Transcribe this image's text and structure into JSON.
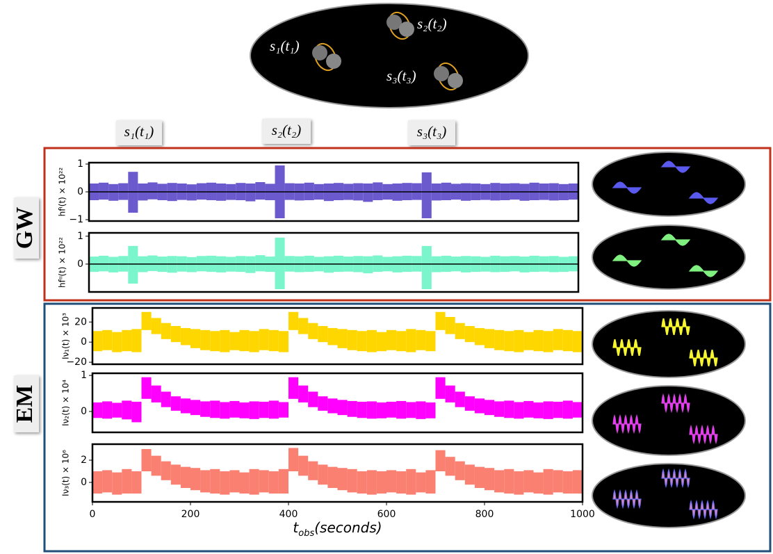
{
  "diagram": {
    "sources": [
      "s₁(t₁)",
      "s₂(t₂)",
      "s₃(t₃)"
    ],
    "markers": [
      "s₁(t₁)",
      "s₂(t₂)",
      "s₃(t₃)"
    ],
    "groups": [
      "GW",
      "EM"
    ]
  },
  "chart_data": [
    {
      "type": "range",
      "y_label": "hfᴵ(t) × 10²²",
      "color": "#6a5acd",
      "zero_line": true,
      "xlim": [
        0,
        1000
      ],
      "ylim": [
        -1.05,
        1.05
      ],
      "yticks": [
        {
          "value": -1,
          "label": "−1"
        },
        0,
        1
      ],
      "x": [
        10,
        30,
        50,
        70,
        90,
        110,
        130,
        150,
        170,
        190,
        210,
        230,
        250,
        270,
        290,
        310,
        330,
        350,
        370,
        390,
        410,
        430,
        450,
        470,
        490,
        510,
        530,
        550,
        570,
        590,
        610,
        630,
        650,
        670,
        690,
        710,
        730,
        750,
        770,
        790,
        810,
        830,
        850,
        870,
        890,
        910,
        930,
        950,
        970,
        990
      ],
      "upper": [
        0.3,
        0.33,
        0.28,
        0.31,
        0.72,
        0.3,
        0.34,
        0.29,
        0.32,
        0.3,
        0.27,
        0.31,
        0.33,
        0.3,
        0.28,
        0.32,
        0.3,
        0.35,
        0.29,
        0.95,
        0.31,
        0.3,
        0.33,
        0.28,
        0.3,
        0.32,
        0.29,
        0.31,
        0.3,
        0.34,
        0.28,
        0.3,
        0.32,
        0.31,
        0.7,
        0.3,
        0.33,
        0.29,
        0.31,
        0.3,
        0.28,
        0.32,
        0.3,
        0.31,
        0.29,
        0.33,
        0.3,
        0.31,
        0.28,
        0.3
      ],
      "lower": [
        -0.3,
        -0.28,
        -0.32,
        -0.29,
        -0.75,
        -0.31,
        -0.27,
        -0.3,
        -0.33,
        -0.29,
        -0.31,
        -0.28,
        -0.3,
        -0.32,
        -0.29,
        -0.3,
        -0.34,
        -0.28,
        -0.3,
        -0.95,
        -0.29,
        -0.31,
        -0.3,
        -0.28,
        -0.33,
        -0.3,
        -0.29,
        -0.31,
        -0.36,
        -0.3,
        -0.28,
        -0.32,
        -0.3,
        -0.29,
        -0.95,
        -0.31,
        -0.3,
        -0.28,
        -0.32,
        -0.3,
        -0.29,
        -0.31,
        -0.3,
        -0.28,
        -0.32,
        -0.3,
        -0.29,
        -0.31,
        -0.3,
        -0.28
      ]
    },
    {
      "type": "range",
      "y_label": "hfᴵᴵ(t) × 10²²",
      "color": "#7af5cc",
      "zero_line": true,
      "xlim": [
        0,
        1000
      ],
      "ylim": [
        -1,
        1.12
      ],
      "yticks": [
        0,
        1
      ],
      "x": [
        10,
        30,
        50,
        70,
        90,
        110,
        130,
        150,
        170,
        190,
        210,
        230,
        250,
        270,
        290,
        310,
        330,
        350,
        370,
        390,
        410,
        430,
        450,
        470,
        490,
        510,
        530,
        550,
        570,
        590,
        610,
        630,
        650,
        670,
        690,
        710,
        730,
        750,
        770,
        790,
        810,
        830,
        850,
        870,
        890,
        910,
        930,
        950,
        970,
        990
      ],
      "upper": [
        0.27,
        0.3,
        0.26,
        0.29,
        0.65,
        0.28,
        0.31,
        0.27,
        0.29,
        0.28,
        0.25,
        0.29,
        0.3,
        0.28,
        0.26,
        0.29,
        0.28,
        0.32,
        0.27,
        0.95,
        0.29,
        0.28,
        0.3,
        0.26,
        0.28,
        0.3,
        0.27,
        0.29,
        0.28,
        0.31,
        0.26,
        0.28,
        0.3,
        0.29,
        0.65,
        0.28,
        0.3,
        0.27,
        0.29,
        0.28,
        0.26,
        0.3,
        0.28,
        0.29,
        0.27,
        0.3,
        0.28,
        0.29,
        0.26,
        0.28
      ],
      "lower": [
        -0.28,
        -0.26,
        -0.3,
        -0.27,
        -0.7,
        -0.29,
        -0.25,
        -0.28,
        -0.31,
        -0.27,
        -0.29,
        -0.26,
        -0.28,
        -0.3,
        -0.27,
        -0.28,
        -0.32,
        -0.26,
        -0.28,
        -0.9,
        -0.27,
        -0.29,
        -0.28,
        -0.26,
        -0.31,
        -0.28,
        -0.27,
        -0.29,
        -0.33,
        -0.28,
        -0.26,
        -0.3,
        -0.28,
        -0.27,
        -0.9,
        -0.29,
        -0.28,
        -0.26,
        -0.3,
        -0.28,
        -0.27,
        -0.29,
        -0.28,
        -0.26,
        -0.3,
        -0.28,
        -0.27,
        -0.29,
        -0.28,
        -0.26
      ]
    },
    {
      "type": "range",
      "y_label": "Iν₁(t) × 10³",
      "color": "#ffd700",
      "xlim": [
        0,
        1000
      ],
      "ylim": [
        -22,
        34
      ],
      "yticks": [
        {
          "value": -20,
          "label": "−20"
        },
        0,
        20
      ],
      "x": [
        10,
        30,
        50,
        70,
        90,
        110,
        130,
        150,
        170,
        190,
        210,
        230,
        250,
        270,
        290,
        310,
        330,
        350,
        370,
        390,
        410,
        430,
        450,
        470,
        490,
        510,
        530,
        550,
        570,
        590,
        610,
        630,
        650,
        670,
        690,
        710,
        730,
        750,
        770,
        790,
        810,
        830,
        850,
        870,
        890,
        910,
        930,
        950,
        970,
        990
      ],
      "upper": [
        11,
        12,
        10,
        12,
        13,
        30,
        24,
        19,
        16,
        14,
        13,
        12,
        11,
        12,
        10,
        12,
        11,
        13,
        12,
        11,
        30,
        24,
        19,
        16,
        14,
        13,
        12,
        11,
        12,
        10,
        12,
        11,
        13,
        12,
        11,
        30,
        25,
        19,
        16,
        14,
        13,
        12,
        11,
        12,
        10,
        12,
        11,
        13,
        12,
        11
      ],
      "lower": [
        -9,
        -8,
        -10,
        -9,
        -10,
        12,
        8,
        3,
        0,
        -3,
        -6,
        -8,
        -9,
        -10,
        -8,
        -9,
        -10,
        -8,
        -9,
        -10,
        12,
        8,
        3,
        0,
        -3,
        -6,
        -8,
        -9,
        -10,
        -9,
        -8,
        -9,
        -10,
        -8,
        -9,
        12,
        8,
        3,
        0,
        -3,
        -6,
        -8,
        -9,
        -10,
        -8,
        -9,
        -10,
        -8,
        -9,
        -10
      ]
    },
    {
      "type": "range",
      "y_label": "Iν₂(t) × 10⁴",
      "color": "#ff00ff",
      "xlim": [
        0,
        1000
      ],
      "ylim": [
        -0.58,
        1.06
      ],
      "yticks": [
        0,
        1
      ],
      "x": [
        10,
        30,
        50,
        70,
        90,
        110,
        130,
        150,
        170,
        190,
        210,
        230,
        250,
        270,
        290,
        310,
        330,
        350,
        370,
        390,
        410,
        430,
        450,
        470,
        490,
        510,
        530,
        550,
        570,
        590,
        610,
        630,
        650,
        670,
        690,
        710,
        730,
        750,
        770,
        790,
        810,
        830,
        850,
        870,
        890,
        910,
        930,
        950,
        970,
        990
      ],
      "upper": [
        0.25,
        0.28,
        0.24,
        0.3,
        0.27,
        0.95,
        0.72,
        0.55,
        0.42,
        0.36,
        0.32,
        0.28,
        0.3,
        0.26,
        0.29,
        0.25,
        0.28,
        0.27,
        0.3,
        0.26,
        0.95,
        0.72,
        0.55,
        0.42,
        0.36,
        0.32,
        0.29,
        0.27,
        0.28,
        0.25,
        0.27,
        0.29,
        0.26,
        0.28,
        0.25,
        0.95,
        0.72,
        0.55,
        0.42,
        0.36,
        0.32,
        0.28,
        0.3,
        0.26,
        0.29,
        0.25,
        0.28,
        0.27,
        0.3,
        0.26
      ],
      "lower": [
        -0.18,
        -0.2,
        -0.17,
        -0.22,
        -0.3,
        0.35,
        0.25,
        0.12,
        0.02,
        -0.05,
        -0.1,
        -0.15,
        -0.18,
        -0.2,
        -0.17,
        -0.19,
        -0.21,
        -0.18,
        -0.2,
        -0.17,
        0.35,
        0.25,
        0.12,
        0.02,
        -0.05,
        -0.1,
        -0.15,
        -0.18,
        -0.2,
        -0.19,
        -0.17,
        -0.2,
        -0.18,
        -0.21,
        -0.19,
        0.35,
        0.25,
        0.12,
        0.02,
        -0.05,
        -0.1,
        -0.15,
        -0.18,
        -0.2,
        -0.17,
        -0.19,
        -0.21,
        -0.18,
        -0.2,
        -0.17
      ]
    },
    {
      "type": "range",
      "y_label": "Iν₃(t) × 10⁶",
      "color": "#fa8072",
      "x_label": [
        "t",
        "obs",
        "(seconds)"
      ],
      "xlim": [
        0,
        1000
      ],
      "xticks": [
        0,
        200,
        400,
        600,
        800,
        1000
      ],
      "ylim": [
        -1.75,
        3.44
      ],
      "yticks": [
        0,
        2
      ],
      "x": [
        10,
        30,
        50,
        70,
        90,
        110,
        130,
        150,
        170,
        190,
        210,
        230,
        250,
        270,
        290,
        310,
        330,
        350,
        370,
        390,
        410,
        430,
        450,
        470,
        490,
        510,
        530,
        550,
        570,
        590,
        610,
        630,
        650,
        670,
        690,
        710,
        730,
        750,
        770,
        790,
        810,
        830,
        850,
        870,
        890,
        910,
        930,
        950,
        970,
        990
      ],
      "upper": [
        1.0,
        1.1,
        0.9,
        1.2,
        1.0,
        3.0,
        2.4,
        1.9,
        1.6,
        1.4,
        1.3,
        1.1,
        1.2,
        1.0,
        1.1,
        0.9,
        1.2,
        1.1,
        1.0,
        1.2,
        3.1,
        2.4,
        1.9,
        1.6,
        1.4,
        1.3,
        1.2,
        1.0,
        1.1,
        1.0,
        1.1,
        1.0,
        1.2,
        0.9,
        1.1,
        2.9,
        2.3,
        1.9,
        1.6,
        1.4,
        1.3,
        1.1,
        1.2,
        1.0,
        1.1,
        0.9,
        1.2,
        1.1,
        1.0,
        1.1
      ],
      "lower": [
        -1.0,
        -0.9,
        -1.1,
        -1.0,
        -1.0,
        1.0,
        0.6,
        0.2,
        -0.2,
        -0.5,
        -0.7,
        -0.9,
        -1.0,
        -1.1,
        -0.9,
        -1.0,
        -1.1,
        -0.9,
        -1.0,
        -1.0,
        1.0,
        0.6,
        0.2,
        -0.2,
        -0.5,
        -0.7,
        -0.9,
        -1.0,
        -1.1,
        -1.0,
        -0.9,
        -1.0,
        -1.1,
        -0.9,
        -1.0,
        1.0,
        0.6,
        0.2,
        -0.2,
        -0.5,
        -0.7,
        -0.9,
        -1.0,
        -1.1,
        -0.9,
        -1.0,
        -1.1,
        -0.9,
        -1.0,
        -1.0
      ]
    }
  ]
}
